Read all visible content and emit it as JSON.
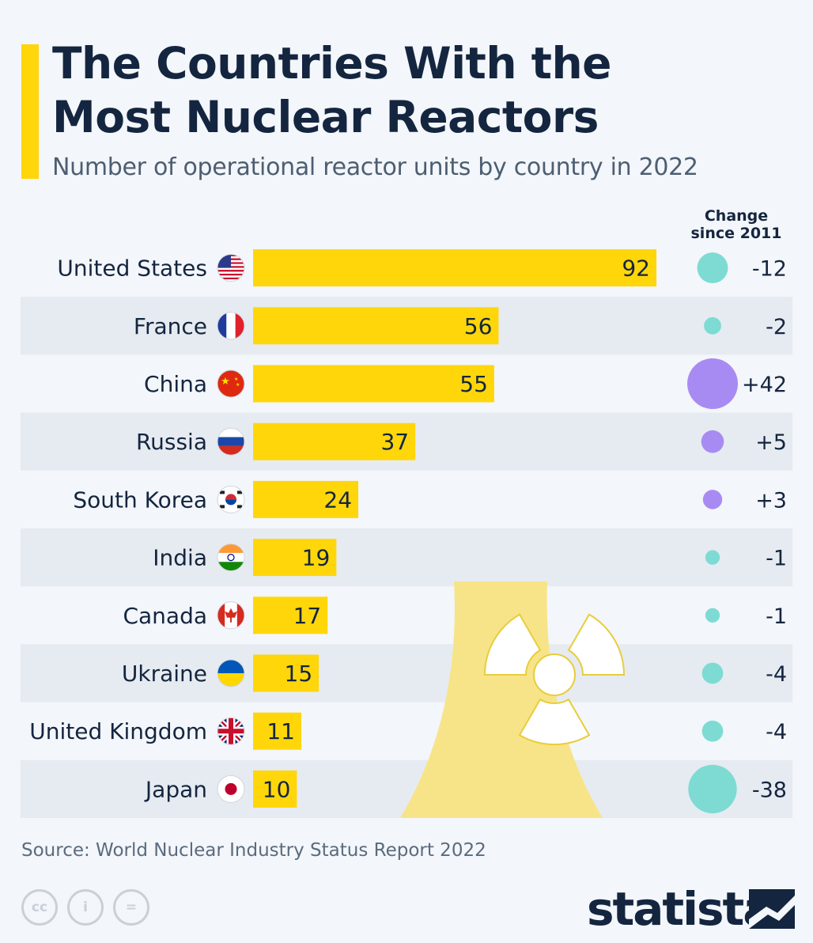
{
  "header": {
    "title_line1": "The Countries With the",
    "title_line2": "Most Nuclear Reactors",
    "subtitle": "Number of operational reactor units by country in 2022"
  },
  "change_header": {
    "line1": "Change",
    "line2": "since 2011"
  },
  "colors": {
    "bar": "#ffd60a",
    "positive": "#a88bf2",
    "negative": "#7ddbd3",
    "text": "#14253f",
    "row_alt": "#e6ebf1",
    "tower": "#f7e488"
  },
  "chart_data": {
    "type": "bar",
    "orientation": "horizontal",
    "title": "The Countries With the Most Nuclear Reactors",
    "subtitle": "Number of operational reactor units by country in 2022",
    "categories": [
      "United States",
      "France",
      "China",
      "Russia",
      "South Korea",
      "India",
      "Canada",
      "Ukraine",
      "United Kingdom",
      "Japan"
    ],
    "values": [
      92,
      56,
      55,
      37,
      24,
      19,
      17,
      15,
      11,
      10
    ],
    "change_since_2011": [
      -12,
      -2,
      42,
      5,
      3,
      -1,
      -1,
      -4,
      -4,
      -38
    ],
    "change_labels": [
      "-12",
      "-2",
      "+42",
      "+5",
      "+3",
      "-1",
      "-1",
      "-4",
      "-4",
      "-38"
    ],
    "flags": [
      "us-flag-icon",
      "france-flag-icon",
      "china-flag-icon",
      "russia-flag-icon",
      "south-korea-flag-icon",
      "india-flag-icon",
      "canada-flag-icon",
      "ukraine-flag-icon",
      "uk-flag-icon",
      "japan-flag-icon"
    ],
    "xlim": [
      0,
      92
    ]
  },
  "footer": {
    "source": "Source: World Nuclear Industry Status Report 2022",
    "brand": "statista",
    "license_icons": [
      "cc-icon",
      "attribution-icon",
      "no-derivatives-icon"
    ],
    "license_glyphs": [
      "cc",
      "i",
      "="
    ]
  }
}
